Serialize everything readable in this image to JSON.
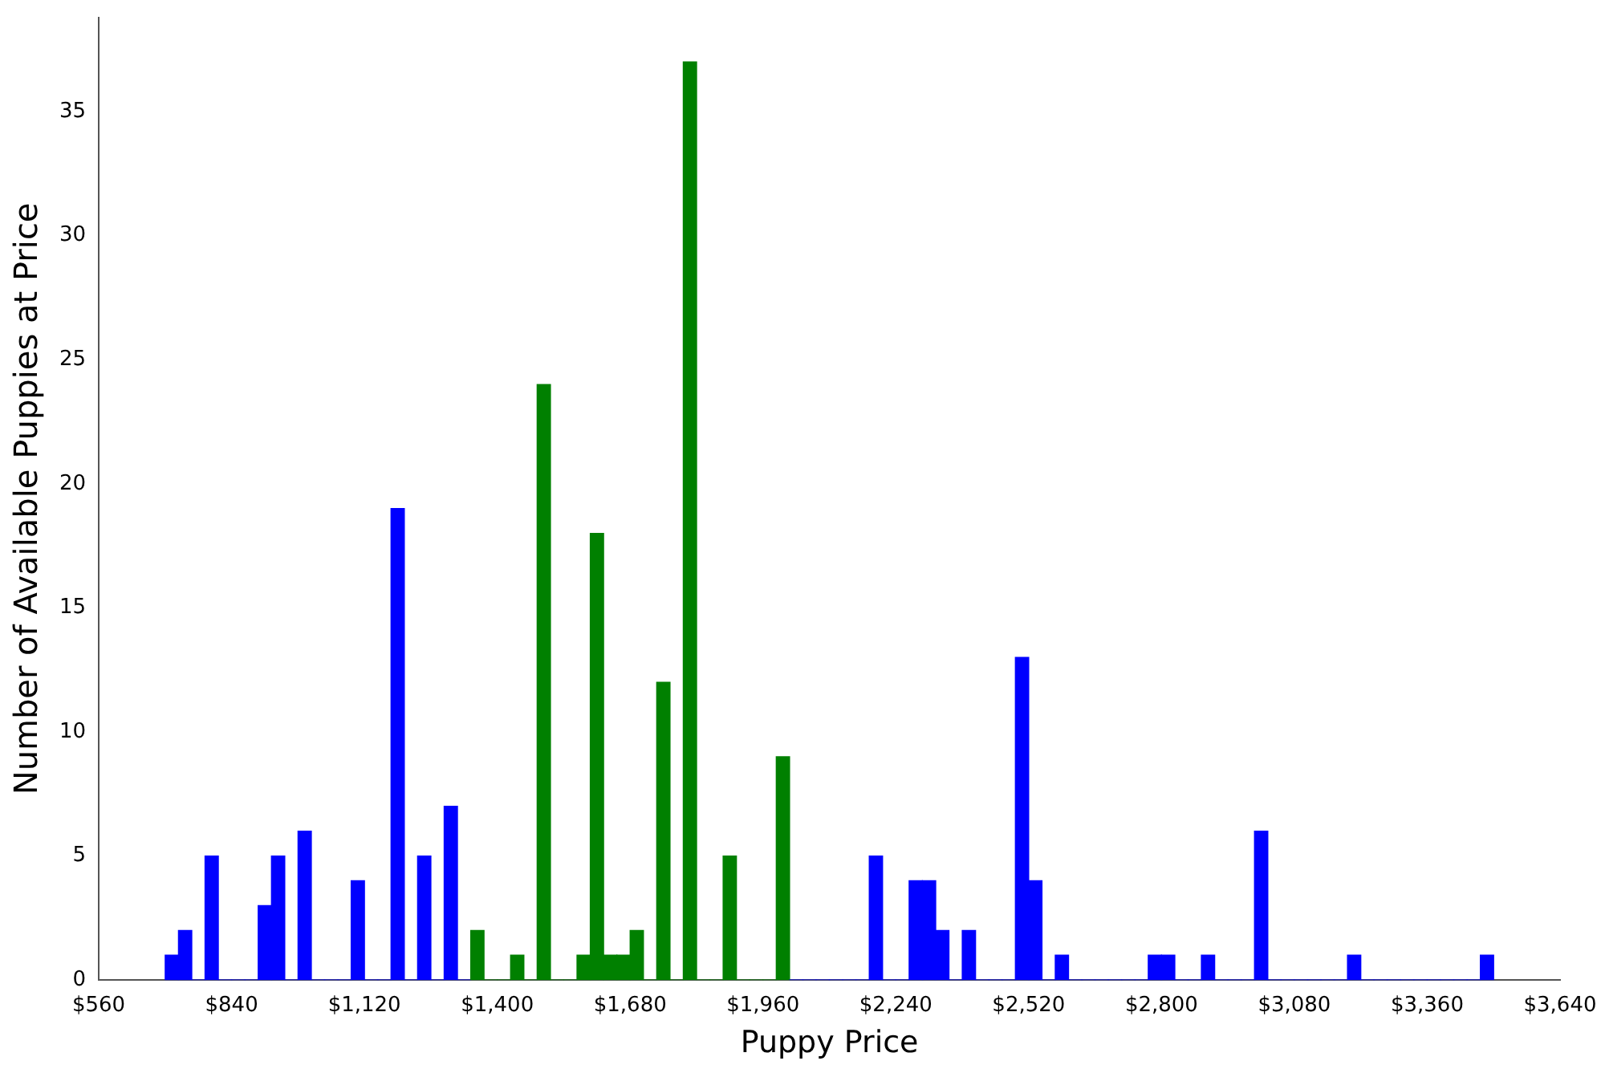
{
  "chart_data": {
    "type": "histogram",
    "xlabel": "Puppy Price",
    "ylabel": "Number of Available Puppies at Price",
    "bins": [
      700,
      728,
      756,
      784,
      812,
      840,
      868,
      896,
      924,
      952,
      980,
      1008,
      1036,
      1064,
      1092,
      1120,
      1148,
      1176,
      1204,
      1232,
      1260,
      1288,
      1316,
      1344,
      1372,
      1400,
      1428,
      1456,
      1484,
      1512,
      1540,
      1568,
      1596,
      1624,
      1652,
      1680,
      1708,
      1736,
      1764,
      1792,
      1820,
      1848,
      1876,
      1904,
      1932,
      1960,
      1988,
      2016,
      2044,
      2072,
      2100,
      2128,
      2156,
      2184,
      2212,
      2240,
      2268,
      2296,
      2324,
      2352,
      2380,
      2408,
      2436,
      2464,
      2492,
      2520,
      2548,
      2576,
      2604,
      2632,
      2660,
      2688,
      2716,
      2744,
      2772,
      2800,
      2828,
      2856,
      2884,
      2912,
      2940,
      2968,
      2996,
      3024,
      3052,
      3080,
      3108,
      3136,
      3164,
      3192,
      3220,
      3248,
      3276,
      3304,
      3332,
      3360,
      3388,
      3416,
      3444,
      3472,
      3500
    ],
    "values": [
      1,
      2,
      0,
      5,
      0,
      0,
      0,
      3,
      5,
      0,
      6,
      0,
      0,
      0,
      4,
      0,
      0,
      19,
      0,
      5,
      0,
      7,
      0,
      2,
      0,
      0,
      1,
      0,
      24,
      0,
      0,
      1,
      18,
      1,
      1,
      2,
      0,
      12,
      0,
      37,
      0,
      0,
      5,
      0,
      0,
      0,
      9,
      0,
      0,
      0,
      0,
      0,
      0,
      5,
      0,
      0,
      4,
      4,
      2,
      0,
      2,
      0,
      0,
      0,
      13,
      4,
      0,
      1,
      0,
      0,
      0,
      0,
      0,
      0,
      1,
      1,
      0,
      0,
      1,
      0,
      0,
      0,
      6,
      0,
      0,
      0,
      0,
      0,
      0,
      1,
      0,
      0,
      0,
      0,
      0,
      0,
      0,
      0,
      0,
      1
    ],
    "colors": [
      "#0000ff",
      "#0000ff",
      "#0000ff",
      "#0000ff",
      "#0000ff",
      "#0000ff",
      "#0000ff",
      "#0000ff",
      "#0000ff",
      "#0000ff",
      "#0000ff",
      "#0000ff",
      "#0000ff",
      "#0000ff",
      "#0000ff",
      "#0000ff",
      "#0000ff",
      "#0000ff",
      "#0000ff",
      "#0000ff",
      "#0000ff",
      "#0000ff",
      "#0000ff",
      "#008000",
      "#008000",
      "#008000",
      "#008000",
      "#008000",
      "#008000",
      "#008000",
      "#008000",
      "#008000",
      "#008000",
      "#008000",
      "#008000",
      "#008000",
      "#008000",
      "#008000",
      "#008000",
      "#008000",
      "#008000",
      "#008000",
      "#008000",
      "#008000",
      "#008000",
      "#008000",
      "#008000",
      "#0000ff",
      "#0000ff",
      "#0000ff",
      "#0000ff",
      "#0000ff",
      "#0000ff",
      "#0000ff",
      "#0000ff",
      "#0000ff",
      "#0000ff",
      "#0000ff",
      "#0000ff",
      "#0000ff",
      "#0000ff",
      "#0000ff",
      "#0000ff",
      "#0000ff",
      "#0000ff",
      "#0000ff",
      "#0000ff",
      "#0000ff",
      "#0000ff",
      "#0000ff",
      "#0000ff",
      "#0000ff",
      "#0000ff",
      "#0000ff",
      "#0000ff",
      "#0000ff",
      "#0000ff",
      "#0000ff",
      "#0000ff",
      "#0000ff",
      "#0000ff",
      "#0000ff",
      "#0000ff",
      "#0000ff",
      "#0000ff",
      "#0000ff",
      "#0000ff",
      "#0000ff",
      "#0000ff",
      "#0000ff",
      "#0000ff",
      "#0000ff",
      "#0000ff",
      "#0000ff",
      "#0000ff",
      "#0000ff",
      "#0000ff",
      "#0000ff",
      "#0000ff",
      "#0000ff"
    ],
    "xlim": [
      560,
      3640
    ],
    "xticks": [
      {
        "value": 560,
        "label": "$560"
      },
      {
        "value": 840,
        "label": "$840"
      },
      {
        "value": 1120,
        "label": "$1,120"
      },
      {
        "value": 1400,
        "label": "$1,400"
      },
      {
        "value": 1680,
        "label": "$1,680"
      },
      {
        "value": 1960,
        "label": "$1,960"
      },
      {
        "value": 2240,
        "label": "$2,240"
      },
      {
        "value": 2520,
        "label": "$2,520"
      },
      {
        "value": 2800,
        "label": "$2,800"
      },
      {
        "value": 3080,
        "label": "$3,080"
      },
      {
        "value": 3360,
        "label": "$3,360"
      },
      {
        "value": 3640,
        "label": "$3,640"
      }
    ],
    "ylim": [
      0,
      38.8
    ],
    "yticks": [
      0,
      5,
      10,
      15,
      20,
      25,
      30,
      35
    ],
    "grid": false,
    "legend": false
  }
}
